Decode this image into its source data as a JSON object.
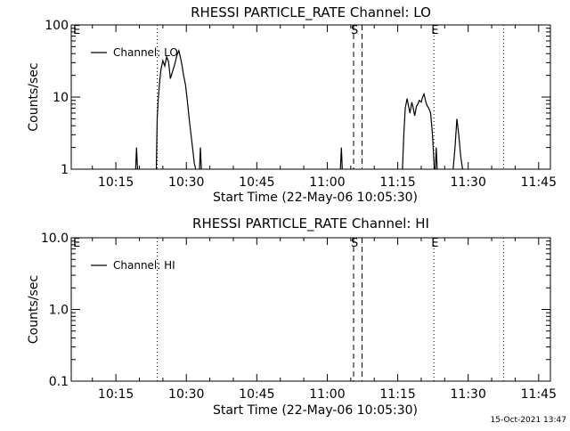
{
  "footer": {
    "timestamp": "15-Oct-2021 13:47"
  },
  "chart_data": [
    {
      "type": "line",
      "title": "RHESSI PARTICLE_RATE Channel: LO",
      "xlabel": "Start Time (22-May-06 10:05:30)",
      "ylabel": "Counts/sec",
      "y_scale": "log",
      "ylim": [
        1,
        100
      ],
      "y_ticks": [
        1,
        10,
        100
      ],
      "y_tick_labels": [
        "1",
        "10",
        "100"
      ],
      "x_unit": "minutes since 10:00",
      "xlim": [
        5.5,
        46.5
      ],
      "x_ticks": [
        15,
        30,
        45,
        60,
        75,
        90,
        105
      ],
      "x_tick_labels": [
        "10:15",
        "10:30",
        "10:45",
        "11:00",
        "11:15",
        "11:30",
        "11:45"
      ],
      "legend": {
        "label": "Channel: LO",
        "placement": "top-left"
      },
      "markers": [
        {
          "label": "E",
          "x": 5.5,
          "style": "dotted"
        },
        {
          "label": "",
          "x": 23.8,
          "style": "dotted"
        },
        {
          "label": "S",
          "x": 65.6,
          "style": "dashed"
        },
        {
          "label": "",
          "x": 67.4,
          "style": "dashed"
        },
        {
          "label": "E",
          "x": 82.7,
          "style": "dotted"
        },
        {
          "label": "",
          "x": 97.5,
          "style": "dotted"
        }
      ],
      "series": [
        {
          "name": "Channel: LO",
          "segments": [
            {
              "x": [
                19.2,
                19.4,
                19.6
              ],
              "y": [
                1,
                2,
                1
              ]
            },
            {
              "x": [
                23.6,
                23.8,
                24.0,
                24.3,
                24.6,
                25.0,
                25.4,
                25.8,
                26.2,
                26.6,
                27.0,
                27.5,
                28.0,
                28.4,
                28.8,
                29.1,
                29.4,
                29.8,
                30.2,
                30.6,
                31.0,
                31.4,
                31.7,
                32.0
              ],
              "y": [
                1,
                5,
                9,
                16,
                24,
                32,
                27,
                36,
                31,
                18,
                22,
                28,
                38,
                44,
                34,
                27,
                20,
                15,
                9,
                5,
                3,
                1.8,
                1.2,
                1
              ]
            },
            {
              "x": [
                32.8,
                33.0,
                33.2
              ],
              "y": [
                1,
                2,
                1
              ]
            },
            {
              "x": [
                62.8,
                63.0,
                63.2
              ],
              "y": [
                1,
                2,
                1
              ]
            },
            {
              "x": [
                76.0,
                76.3,
                76.6,
                77.0,
                77.3,
                77.6,
                78.0,
                78.3,
                78.6,
                79.0,
                79.3,
                79.6,
                80.0,
                80.3,
                80.6,
                81.0,
                81.3,
                81.6,
                82.0,
                82.4,
                82.8
              ],
              "y": [
                1,
                3,
                7,
                9.5,
                7.5,
                6,
                8.5,
                7,
                5.5,
                7.5,
                8,
                9,
                8.5,
                10,
                11,
                8.5,
                7.5,
                7,
                6,
                3,
                1
              ]
            },
            {
              "x": [
                83.0,
                83.2,
                83.4
              ],
              "y": [
                1,
                2,
                1
              ]
            },
            {
              "x": [
                86.8,
                87.2,
                87.6,
                88.0,
                88.4,
                88.8
              ],
              "y": [
                1,
                2,
                5,
                3,
                1.5,
                1
              ]
            }
          ]
        }
      ]
    },
    {
      "type": "line",
      "title": "RHESSI PARTICLE_RATE Channel: HI",
      "xlabel": "Start Time (22-May-06 10:05:30)",
      "ylabel": "Counts/sec",
      "y_scale": "log",
      "ylim": [
        0.1,
        10
      ],
      "y_ticks": [
        0.1,
        1,
        10
      ],
      "y_tick_labels": [
        "0.1",
        "1.0",
        "10.0"
      ],
      "x_unit": "minutes since 10:00",
      "xlim": [
        5.5,
        46.5
      ],
      "x_ticks": [
        15,
        30,
        45,
        60,
        75,
        90,
        105
      ],
      "x_tick_labels": [
        "10:15",
        "10:30",
        "10:45",
        "11:00",
        "11:15",
        "11:30",
        "11:45"
      ],
      "legend": {
        "label": "Channel: HI",
        "placement": "top-left"
      },
      "markers": [
        {
          "label": "E",
          "x": 5.5,
          "style": "dotted"
        },
        {
          "label": "",
          "x": 23.8,
          "style": "dotted"
        },
        {
          "label": "S",
          "x": 65.6,
          "style": "dashed"
        },
        {
          "label": "",
          "x": 67.4,
          "style": "dashed"
        },
        {
          "label": "E",
          "x": 82.7,
          "style": "dotted"
        },
        {
          "label": "",
          "x": 97.5,
          "style": "dotted"
        }
      ],
      "series": [
        {
          "name": "Channel: HI",
          "segments": []
        }
      ]
    }
  ]
}
